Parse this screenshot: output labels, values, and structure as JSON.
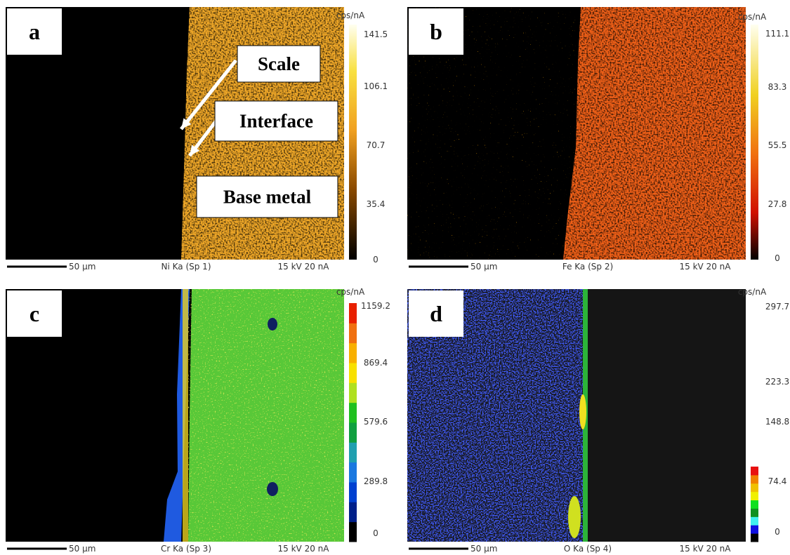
{
  "panels": [
    {
      "label": "a",
      "unit": "cps/nA",
      "scale_ticks": [
        "141.5",
        "106.1",
        "70.7",
        "35.4",
        "0"
      ],
      "scale_bar": "50 µm",
      "signal": "Ni Ka (Sp 1)",
      "conditions": "15 kV 20 nA"
    },
    {
      "label": "b",
      "unit": "cps/nA",
      "scale_ticks": [
        "111.1",
        "83.3",
        "55.5",
        "27.8",
        "0"
      ],
      "scale_bar": "50 µm",
      "signal": "Fe Ka (Sp 2)",
      "conditions": "15 kV 20 nA"
    },
    {
      "label": "c",
      "unit": "cps/nA",
      "scale_ticks": [
        "1159.2",
        "869.4",
        "579.6",
        "289.8",
        "0"
      ],
      "scale_bar": "50 µm",
      "signal": "Cr Ka (Sp 3)",
      "conditions": "15 kV 20 nA"
    },
    {
      "label": "d",
      "unit": "cps/nA",
      "scale_ticks": [
        "297.7",
        "223.3",
        "148.8",
        "74.4",
        "0"
      ],
      "scale_bar": "50 µm",
      "signal": "O Ka (Sp 4)",
      "conditions": "15 kV 20 nA"
    }
  ],
  "annotations": [
    "Scale",
    "Interface",
    "Base metal"
  ]
}
